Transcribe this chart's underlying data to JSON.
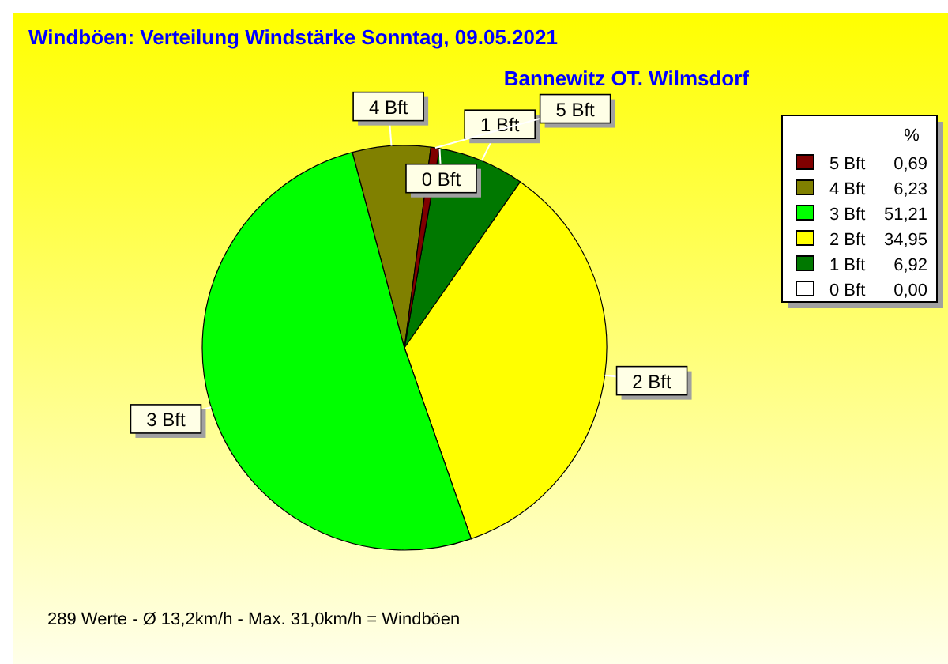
{
  "chart_data": {
    "type": "pie",
    "title": "Windböen: Verteilung Windstärke  Sonntag, 09.05.2021",
    "subtitle": "Bannewitz OT. Wilmsdorf",
    "categories": [
      "0 Bft",
      "1 Bft",
      "2 Bft",
      "3 Bft",
      "4 Bft",
      "5 Bft"
    ],
    "values": [
      0.0,
      6.92,
      34.95,
      51.21,
      6.23,
      0.69
    ],
    "value_labels": [
      "0,00",
      "6,92",
      "34,95",
      "51,21",
      "6,23",
      "0,69"
    ],
    "colors": [
      "#ffffff",
      "#007800",
      "#ffff00",
      "#00ff00",
      "#808000",
      "#800000"
    ],
    "legend_title": "%",
    "legend": "top right",
    "annotations": [
      "289 Werte   -   Ø 13,2km/h  -  Max. 31,0km/h = Windböen"
    ]
  }
}
